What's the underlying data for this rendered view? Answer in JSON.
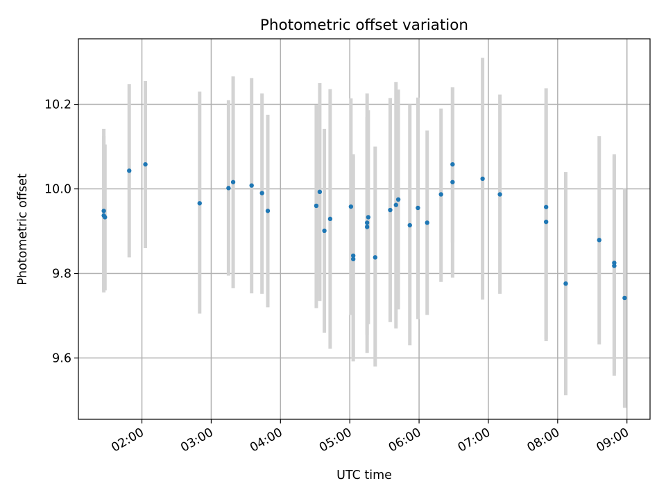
{
  "chart_data": {
    "type": "scatter",
    "title": "Photometric offset variation",
    "xlabel": "UTC time",
    "ylabel": "Photometric offset",
    "x_unit": "UTC time (HH:MM)",
    "xlim": [
      "01:05",
      "09:20"
    ],
    "ylim": [
      9.455,
      10.355
    ],
    "x_ticks": [
      "02:00",
      "03:00",
      "04:00",
      "05:00",
      "06:00",
      "07:00",
      "08:00",
      "09:00"
    ],
    "y_ticks": [
      "9.6",
      "9.8",
      "10.0",
      "10.2"
    ],
    "grid": true,
    "colors": {
      "points": "#1f77b4",
      "error_bars": "#d3d3d3",
      "grid": "#b0b0b0"
    },
    "points": [
      {
        "x": "01:27",
        "y": 9.948,
        "lo": 9.755,
        "hi": 10.142
      },
      {
        "x": "01:27",
        "y": 9.937,
        "lo": 9.76,
        "hi": 10.125
      },
      {
        "x": "01:28",
        "y": 9.933,
        "lo": 9.76,
        "hi": 10.105
      },
      {
        "x": "01:49",
        "y": 10.043,
        "lo": 9.838,
        "hi": 10.248
      },
      {
        "x": "02:03",
        "y": 10.058,
        "lo": 9.86,
        "hi": 10.255
      },
      {
        "x": "02:50",
        "y": 9.966,
        "lo": 9.705,
        "hi": 10.23
      },
      {
        "x": "03:15",
        "y": 10.002,
        "lo": 9.795,
        "hi": 10.21
      },
      {
        "x": "03:19",
        "y": 10.016,
        "lo": 9.765,
        "hi": 10.266
      },
      {
        "x": "03:35",
        "y": 10.008,
        "lo": 9.753,
        "hi": 10.262
      },
      {
        "x": "03:44",
        "y": 9.99,
        "lo": 9.752,
        "hi": 10.226
      },
      {
        "x": "03:49",
        "y": 9.948,
        "lo": 9.72,
        "hi": 10.175
      },
      {
        "x": "04:31",
        "y": 9.96,
        "lo": 9.718,
        "hi": 10.198
      },
      {
        "x": "04:34",
        "y": 9.993,
        "lo": 9.735,
        "hi": 10.25
      },
      {
        "x": "04:38",
        "y": 9.901,
        "lo": 9.66,
        "hi": 10.142
      },
      {
        "x": "04:43",
        "y": 9.929,
        "lo": 9.622,
        "hi": 10.236
      },
      {
        "x": "05:01",
        "y": 9.958,
        "lo": 9.702,
        "hi": 10.214
      },
      {
        "x": "05:03",
        "y": 9.842,
        "lo": 9.598,
        "hi": 10.082
      },
      {
        "x": "05:03",
        "y": 9.834,
        "lo": 9.592,
        "hi": 10.078
      },
      {
        "x": "05:15",
        "y": 9.92,
        "lo": 9.612,
        "hi": 10.226
      },
      {
        "x": "05:15",
        "y": 9.91,
        "lo": 9.655,
        "hi": 10.17
      },
      {
        "x": "05:16",
        "y": 9.933,
        "lo": 9.68,
        "hi": 10.186
      },
      {
        "x": "05:22",
        "y": 9.838,
        "lo": 9.58,
        "hi": 10.1
      },
      {
        "x": "05:35",
        "y": 9.95,
        "lo": 9.685,
        "hi": 10.215
      },
      {
        "x": "05:40",
        "y": 9.962,
        "lo": 9.67,
        "hi": 10.253
      },
      {
        "x": "05:42",
        "y": 9.975,
        "lo": 9.715,
        "hi": 10.235
      },
      {
        "x": "05:52",
        "y": 9.914,
        "lo": 9.63,
        "hi": 10.2
      },
      {
        "x": "05:59",
        "y": 9.955,
        "lo": 9.692,
        "hi": 10.216
      },
      {
        "x": "06:07",
        "y": 9.92,
        "lo": 9.702,
        "hi": 10.138
      },
      {
        "x": "06:19",
        "y": 9.987,
        "lo": 9.78,
        "hi": 10.19
      },
      {
        "x": "06:29",
        "y": 10.058,
        "lo": 9.873,
        "hi": 10.24
      },
      {
        "x": "06:29",
        "y": 10.016,
        "lo": 9.79,
        "hi": 10.24
      },
      {
        "x": "06:55",
        "y": 10.024,
        "lo": 9.738,
        "hi": 10.31
      },
      {
        "x": "07:10",
        "y": 9.987,
        "lo": 9.752,
        "hi": 10.223
      },
      {
        "x": "07:50",
        "y": 9.957,
        "lo": 9.64,
        "hi": 10.238
      },
      {
        "x": "07:50",
        "y": 9.922,
        "lo": 9.645,
        "hi": 10.198
      },
      {
        "x": "08:07",
        "y": 9.776,
        "lo": 9.512,
        "hi": 10.04
      },
      {
        "x": "08:36",
        "y": 9.879,
        "lo": 9.632,
        "hi": 10.125
      },
      {
        "x": "08:49",
        "y": 9.825,
        "lo": 9.558,
        "hi": 10.082
      },
      {
        "x": "08:49",
        "y": 9.818,
        "lo": 9.565,
        "hi": 10.078
      },
      {
        "x": "08:58",
        "y": 9.742,
        "lo": 9.482,
        "hi": 10.002
      }
    ]
  }
}
